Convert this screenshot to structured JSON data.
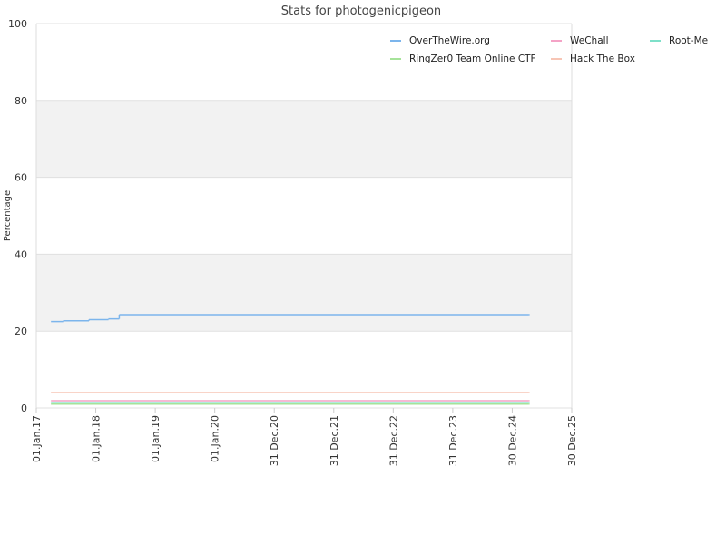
{
  "chart_data": {
    "type": "line",
    "step": true,
    "title": "Stats for photogenicpigeon",
    "y_label": "Percentage",
    "xlim": [
      "2017-01-01",
      "2025-12-30"
    ],
    "xticks": [
      {
        "value": "2017-01-01",
        "label": "01.Jan.17"
      },
      {
        "value": "2018-01-01",
        "label": "01.Jan.18"
      },
      {
        "value": "2019-01-01",
        "label": "01.Jan.19"
      },
      {
        "value": "2020-01-01",
        "label": "01.Jan.20"
      },
      {
        "value": "2020-12-31",
        "label": "31.Dec.20"
      },
      {
        "value": "2021-12-31",
        "label": "31.Dec.21"
      },
      {
        "value": "2022-12-31",
        "label": "31.Dec.22"
      },
      {
        "value": "2023-12-31",
        "label": "31.Dec.23"
      },
      {
        "value": "2024-12-30",
        "label": "30.Dec.24"
      },
      {
        "value": "2025-12-30",
        "label": "30.Dec.25"
      }
    ],
    "ylim": [
      0,
      100
    ],
    "yticks": [
      0,
      20,
      40,
      60,
      80,
      100
    ],
    "grid": true,
    "alternate_bands": true,
    "legend": "top-right",
    "series": [
      {
        "name": "OverTheWire.org",
        "color": "#7cb5ec",
        "x": [
          "2017-04-01",
          "2017-06-15",
          "2017-11-20",
          "2018-03-20",
          "2018-05-25",
          "2025-04-10"
        ],
        "values": [
          22.5,
          22.7,
          23.0,
          23.2,
          24.3,
          24.3
        ]
      },
      {
        "name": "WeChall",
        "color": "#f4a3c6",
        "x": [
          "2017-04-01",
          "2025-04-10"
        ],
        "values": [
          1.9,
          1.9
        ]
      },
      {
        "name": "Root-Me",
        "color": "#7ee0c9",
        "x": [
          "2017-04-01",
          "2025-04-10"
        ],
        "values": [
          1.4,
          1.4
        ]
      },
      {
        "name": "RingZer0 Team Online CTF",
        "color": "#a6e39a",
        "x": [
          "2017-04-01",
          "2025-04-10"
        ],
        "values": [
          1.0,
          1.0
        ]
      },
      {
        "name": "Hack The Box",
        "color": "#f7c5b5",
        "x": [
          "2017-04-01",
          "2025-04-10"
        ],
        "values": [
          4.0,
          4.0
        ]
      }
    ]
  }
}
